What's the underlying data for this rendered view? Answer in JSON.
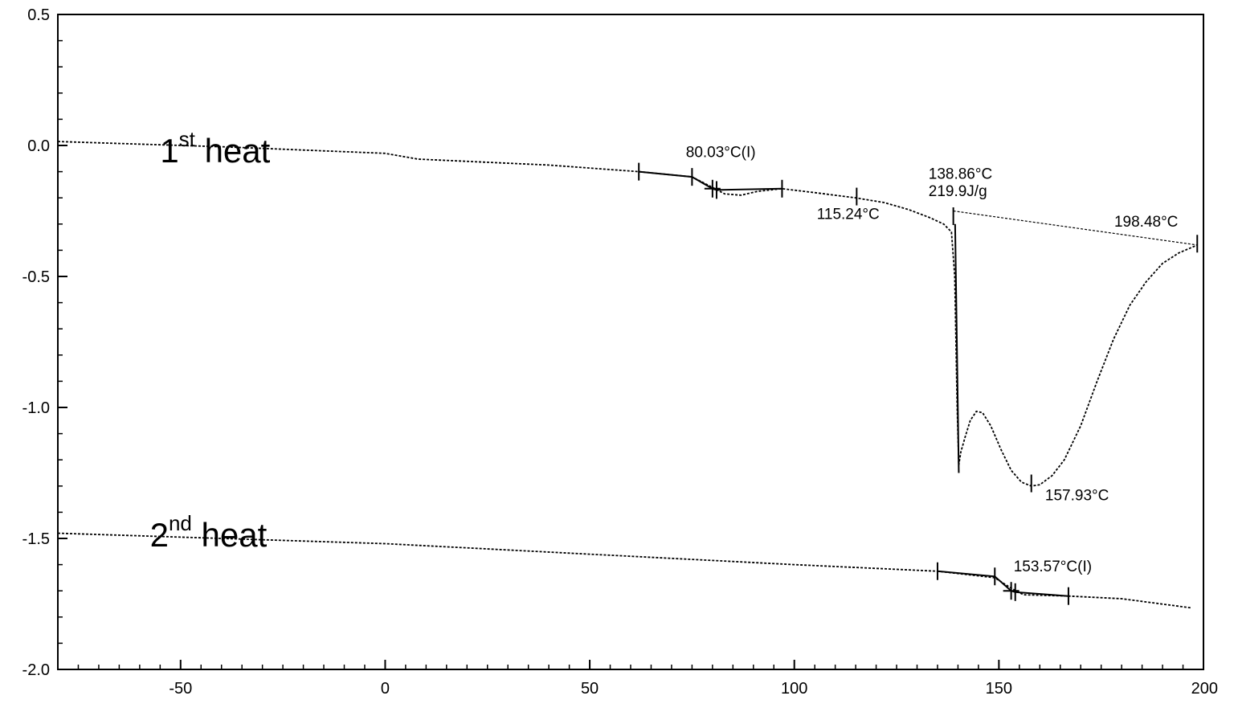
{
  "chart_data": {
    "type": "line",
    "xlim": [
      -80,
      200
    ],
    "ylim": [
      -2.0,
      0.5
    ],
    "x_ticks": [
      -50,
      0,
      50,
      100,
      150,
      200
    ],
    "x_tick_labels": [
      "-50",
      "0",
      "50",
      "100",
      "150",
      "200"
    ],
    "y_ticks": [
      0.5,
      0.0,
      -0.5,
      -1.0,
      -1.5,
      -2.0
    ],
    "y_tick_labels": [
      "0.5",
      "0.0",
      "-0.5",
      "-1.0",
      "-1.5",
      "-2.0"
    ],
    "grid": false,
    "line_color": "#000000",
    "series": [
      {
        "points": [
          [
            -80,
            0.015
          ],
          [
            -40,
            -0.005
          ],
          [
            0,
            -0.03
          ],
          [
            8,
            -0.052
          ],
          [
            40,
            -0.075
          ],
          [
            62,
            -0.1
          ],
          [
            75,
            -0.12
          ],
          [
            80,
            -0.16
          ],
          [
            83,
            -0.185
          ],
          [
            87,
            -0.19
          ],
          [
            91,
            -0.175
          ],
          [
            97,
            -0.165
          ],
          [
            105,
            -0.18
          ],
          [
            115,
            -0.2
          ],
          [
            122,
            -0.218
          ],
          [
            128,
            -0.245
          ],
          [
            133,
            -0.275
          ],
          [
            136.5,
            -0.3
          ],
          [
            138.4,
            -0.33
          ],
          [
            139.2,
            -0.5
          ],
          [
            139.8,
            -1.0
          ],
          [
            140.2,
            -1.22
          ],
          [
            140.7,
            -1.17
          ],
          [
            141.8,
            -1.11
          ],
          [
            143,
            -1.05
          ],
          [
            144.5,
            -1.015
          ],
          [
            146,
            -1.02
          ],
          [
            148,
            -1.07
          ],
          [
            150.5,
            -1.16
          ],
          [
            153,
            -1.24
          ],
          [
            155.5,
            -1.285
          ],
          [
            157.9,
            -1.3
          ],
          [
            160,
            -1.295
          ],
          [
            163,
            -1.26
          ],
          [
            166,
            -1.2
          ],
          [
            170,
            -1.07
          ],
          [
            174,
            -0.9
          ],
          [
            178,
            -0.74
          ],
          [
            182,
            -0.61
          ],
          [
            186,
            -0.52
          ],
          [
            190,
            -0.45
          ],
          [
            194,
            -0.41
          ],
          [
            198.5,
            -0.38
          ]
        ]
      },
      {
        "points": [
          [
            -80,
            -1.48
          ],
          [
            0,
            -1.52
          ],
          [
            50,
            -1.56
          ],
          [
            100,
            -1.6
          ],
          [
            135,
            -1.625
          ],
          [
            149,
            -1.65
          ],
          [
            153,
            -1.69
          ],
          [
            156,
            -1.715
          ],
          [
            167,
            -1.72
          ],
          [
            180,
            -1.73
          ],
          [
            197,
            -1.765
          ]
        ]
      }
    ],
    "baselines": [
      {
        "from": [
          138.86,
          -0.25
        ],
        "to": [
          198.48,
          -0.38
        ]
      }
    ],
    "transitions": [
      {
        "points": [
          [
            62,
            -0.1
          ],
          [
            75,
            -0.12
          ],
          [
            80,
            -0.165
          ],
          [
            81,
            -0.17
          ],
          [
            97,
            -0.165
          ]
        ]
      },
      {
        "points": [
          [
            135,
            -1.625
          ],
          [
            149,
            -1.645
          ],
          [
            153,
            -1.7
          ],
          [
            154,
            -1.705
          ],
          [
            167,
            -1.72
          ]
        ]
      }
    ],
    "markers": [
      {
        "x": 62,
        "y": -0.1
      },
      {
        "x": 75,
        "y": -0.12
      },
      {
        "x": 80,
        "y": -0.165
      },
      {
        "x": 81,
        "y": -0.17
      },
      {
        "x": 97,
        "y": -0.165
      },
      {
        "x": 115.24,
        "y": -0.195
      },
      {
        "x": 138.86,
        "y": -0.27
      },
      {
        "x": 157.93,
        "y": -1.29
      },
      {
        "x": 198.48,
        "y": -0.375
      },
      {
        "x": 135,
        "y": -1.625
      },
      {
        "x": 149,
        "y": -1.645
      },
      {
        "x": 153,
        "y": -1.7
      },
      {
        "x": 154,
        "y": -1.705
      },
      {
        "x": 167,
        "y": -1.72
      }
    ],
    "annotations": [
      {
        "text": "80.03°C(I)",
        "x": 73.5,
        "y": -0.045
      },
      {
        "text": "115.24°C",
        "x": 105.5,
        "y": -0.28
      },
      {
        "text": "138.86°C",
        "x": 132.8,
        "y": -0.127
      },
      {
        "text": "219.9J/g",
        "x": 132.8,
        "y": -0.193
      },
      {
        "text": "198.48°C",
        "x": 178.2,
        "y": -0.31
      },
      {
        "text": "157.93°C",
        "x": 161.3,
        "y": -1.355
      },
      {
        "text": "153.57°C(I)",
        "x": 153.6,
        "y": -1.625
      }
    ],
    "curve_labels": [
      {
        "text": "1",
        "superscript": "st",
        "suffix": " heat",
        "x": -55,
        "y": -0.065
      },
      {
        "text": "2",
        "superscript": "nd",
        "suffix": " heat",
        "x": -57.5,
        "y": -1.53
      }
    ]
  }
}
